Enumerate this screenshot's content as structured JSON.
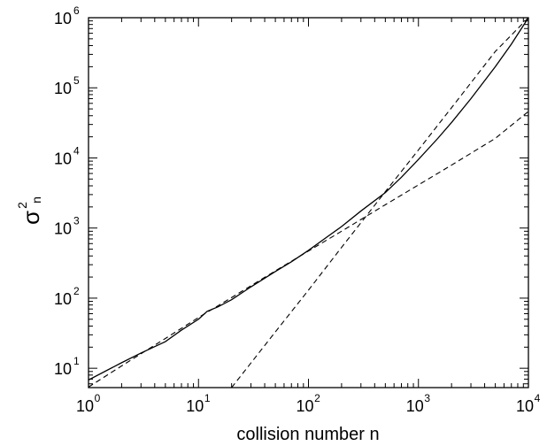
{
  "chart_data": {
    "type": "line",
    "xscale": "log",
    "yscale": "log",
    "xlim": [
      1,
      10000
    ],
    "ylim": [
      5.3,
      1000000
    ],
    "xlabel": "collision number n",
    "ylabel": {
      "base": "σ",
      "superscript": "2",
      "subscript": "n"
    },
    "x_ticks": [
      {
        "value": 1,
        "base": "10",
        "exp": "0"
      },
      {
        "value": 10,
        "base": "10",
        "exp": "1"
      },
      {
        "value": 100,
        "base": "10",
        "exp": "2"
      },
      {
        "value": 1000,
        "base": "10",
        "exp": "3"
      },
      {
        "value": 10000,
        "base": "10",
        "exp": "4"
      }
    ],
    "y_ticks": [
      {
        "value": 10,
        "base": "10",
        "exp": "1"
      },
      {
        "value": 100,
        "base": "10",
        "exp": "2"
      },
      {
        "value": 1000,
        "base": "10",
        "exp": "3"
      },
      {
        "value": 10000,
        "base": "10",
        "exp": "4"
      },
      {
        "value": 100000,
        "base": "10",
        "exp": "5"
      },
      {
        "value": 1000000,
        "base": "10",
        "exp": "6"
      }
    ],
    "grid": false,
    "legend": "none",
    "series": [
      {
        "style": "solid",
        "points": [
          [
            1,
            6.8
          ],
          [
            2,
            12
          ],
          [
            3,
            16.5
          ],
          [
            5,
            24
          ],
          [
            7,
            35
          ],
          [
            10,
            50
          ],
          [
            12,
            65
          ],
          [
            15,
            75
          ],
          [
            20,
            95
          ],
          [
            30,
            145
          ],
          [
            50,
            240
          ],
          [
            70,
            330
          ],
          [
            100,
            480
          ],
          [
            150,
            760
          ],
          [
            200,
            1050
          ],
          [
            300,
            1750
          ],
          [
            500,
            3200
          ],
          [
            700,
            5300
          ],
          [
            1000,
            9500
          ],
          [
            1500,
            19000
          ],
          [
            2000,
            32000
          ],
          [
            3000,
            70000
          ],
          [
            5000,
            200000
          ],
          [
            7000,
            420000
          ],
          [
            10000,
            1000000
          ]
        ]
      },
      {
        "style": "dashed",
        "points": [
          [
            1,
            5.4
          ],
          [
            2,
            10.8
          ],
          [
            5,
            26.6
          ],
          [
            10,
            53
          ],
          [
            20,
            102
          ],
          [
            50,
            245
          ],
          [
            100,
            470
          ],
          [
            200,
            900
          ],
          [
            500,
            2150
          ],
          [
            1000,
            4120
          ],
          [
            2000,
            7900
          ],
          [
            5000,
            19000
          ],
          [
            10000,
            46000
          ]
        ]
      },
      {
        "style": "dashed",
        "points": [
          [
            20,
            5.3
          ],
          [
            50,
            33
          ],
          [
            100,
            130
          ],
          [
            200,
            530
          ],
          [
            500,
            3300
          ],
          [
            1000,
            13000
          ],
          [
            2000,
            52000
          ],
          [
            5000,
            330000
          ],
          [
            10000,
            1000000
          ]
        ]
      }
    ]
  }
}
